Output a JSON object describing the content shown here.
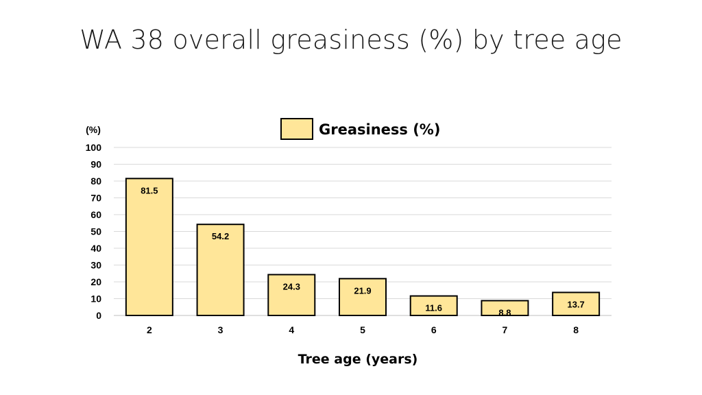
{
  "slide": {
    "title": "WA 38 overall greasiness (%) by tree age"
  },
  "chart_data": {
    "type": "bar",
    "title": "",
    "xlabel": "Tree age (years)",
    "ylabel": "(%)",
    "categories": [
      "2",
      "3",
      "4",
      "5",
      "6",
      "7",
      "8"
    ],
    "series": [
      {
        "name": "Greasiness (%)",
        "values": [
          81.5,
          54.2,
          24.3,
          21.9,
          11.6,
          8.8,
          13.7
        ]
      }
    ],
    "ylim": [
      0,
      100
    ],
    "yticks": [
      0,
      10,
      20,
      30,
      40,
      50,
      60,
      70,
      80,
      90,
      100
    ],
    "grid": true,
    "legend": "top-center",
    "bar_color": "#FFE699",
    "bar_edge": "#000000",
    "grid_color": "#D9D9D9"
  }
}
